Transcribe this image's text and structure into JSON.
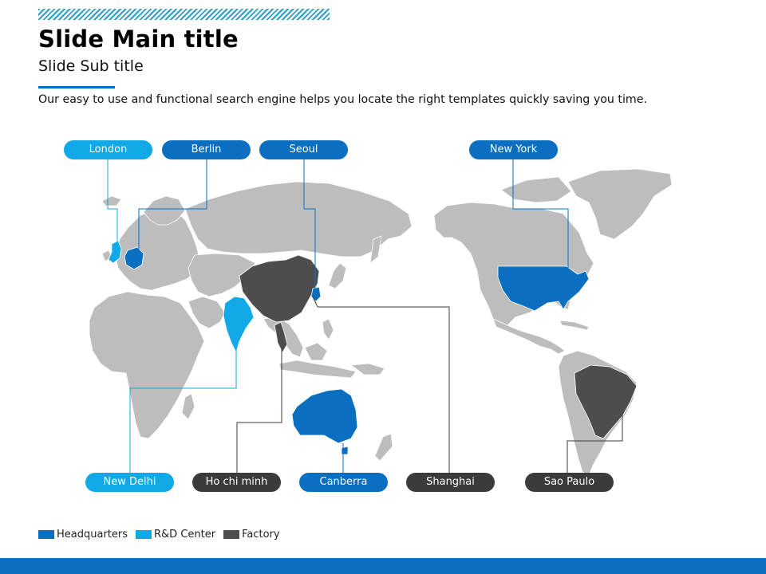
{
  "slide": {
    "title": "Slide Main title",
    "subtitle": "Slide Sub title",
    "description": "Our easy to use and functional search engine helps you locate the right templates quickly saving you time."
  },
  "colors": {
    "headquarters": "#0a6fc1",
    "rd_center": "#11a8e8",
    "factory": "#4d4d4d",
    "land": "#bdbdbd",
    "accent_bar": "#0a6fc1"
  },
  "locations": {
    "london": {
      "label": "London",
      "category": "rd_center"
    },
    "berlin": {
      "label": "Berlin",
      "category": "headquarters"
    },
    "seoul": {
      "label": "Seoul",
      "category": "headquarters"
    },
    "new_york": {
      "label": "New York",
      "category": "headquarters"
    },
    "new_delhi": {
      "label": "New Delhi",
      "category": "rd_center"
    },
    "ho_chi_minh": {
      "label": "Ho chi minh",
      "category": "factory"
    },
    "canberra": {
      "label": "Canberra",
      "category": "headquarters"
    },
    "shanghai": {
      "label": "Shanghai",
      "category": "factory"
    },
    "sao_paulo": {
      "label": "Sao Paulo",
      "category": "factory"
    }
  },
  "highlighted_countries": {
    "headquarters": [
      "Germany",
      "South Korea",
      "United States",
      "Australia"
    ],
    "rd_center": [
      "United Kingdom",
      "India"
    ],
    "factory": [
      "China",
      "Vietnam",
      "Brazil"
    ]
  },
  "legend": [
    {
      "label": "Headquarters",
      "color": "#0a6fc1"
    },
    {
      "label": "R&D Center",
      "color": "#11a8e8"
    },
    {
      "label": "Factory",
      "color": "#4d4d4d"
    }
  ]
}
